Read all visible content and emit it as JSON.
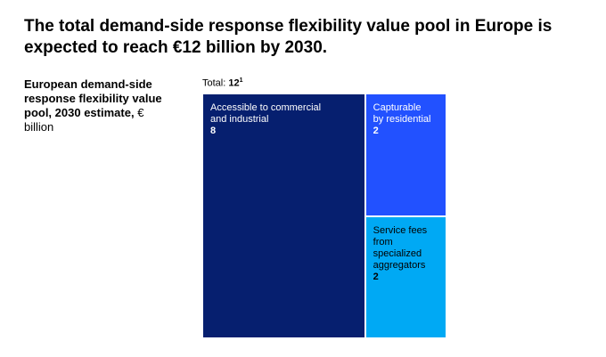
{
  "chart_data": {
    "type": "treemap",
    "title": "The total demand-side response flexibility value pool in Europe is expected to reach €12 billion by 2030.",
    "subtitle": "European demand-side response flexibility value pool, 2030 estimate,",
    "unit": "€ billion",
    "total_label": "Total:",
    "total": 12,
    "total_footnote": "1",
    "categories": [
      "Accessible to commercial\nand industrial",
      "Capturable\nby residential",
      "Service fees\nfrom specialized\naggregators"
    ],
    "values": [
      8,
      2,
      2
    ],
    "colors": [
      "#061f6f",
      "#2251ff",
      "#00a9f4"
    ],
    "text_colors": [
      "#ffffff",
      "#ffffff",
      "#000000"
    ]
  }
}
